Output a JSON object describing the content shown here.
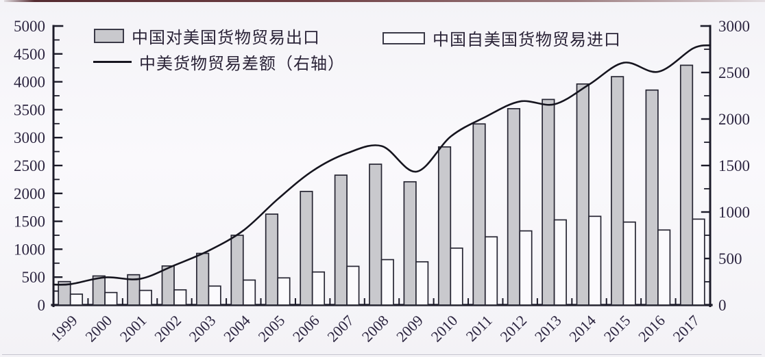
{
  "page": {
    "background": "#f8f7fa",
    "ink_color": "#1c1b29",
    "text_color": "#2c2540"
  },
  "legend": {
    "exports_label": "中国对美国货物贸易出口",
    "imports_label": "中国自美国货物贸易进口",
    "balance_label": "中美货物贸易差额（右轴）"
  },
  "chart_data": {
    "type": "bar+line",
    "title": "",
    "xlabel": "",
    "ylabel": "",
    "categories": [
      "1999",
      "2000",
      "2001",
      "2002",
      "2003",
      "2004",
      "2005",
      "2006",
      "2007",
      "2008",
      "2009",
      "2010",
      "2011",
      "2012",
      "2013",
      "2014",
      "2015",
      "2016",
      "2017"
    ],
    "series": [
      {
        "name": "中国对美国货物贸易出口",
        "type": "bar",
        "axis": "left",
        "fill": "#c9c9cd",
        "stroke": "#262532",
        "values": [
          420,
          521,
          543,
          700,
          925,
          1250,
          1629,
          2035,
          2327,
          2523,
          2208,
          2833,
          3245,
          3518,
          3684,
          3961,
          4092,
          3852,
          4297
        ]
      },
      {
        "name": "中国自美国货物贸易进口",
        "type": "bar",
        "axis": "left",
        "fill": "#fbfafd",
        "stroke": "#262532",
        "values": [
          195,
          224,
          262,
          272,
          339,
          447,
          487,
          592,
          694,
          814,
          774,
          1020,
          1222,
          1329,
          1526,
          1590,
          1487,
          1344,
          1539
        ]
      },
      {
        "name": "中美货物贸易差额（右轴）",
        "type": "line",
        "axis": "right",
        "color": "#16151f",
        "values": [
          225,
          297,
          281,
          427,
          586,
          803,
          1142,
          1443,
          1633,
          1709,
          1434,
          1813,
          2023,
          2189,
          2159,
          2371,
          2605,
          2508,
          2758
        ]
      }
    ],
    "left_axis": {
      "min": 0,
      "max": 5000,
      "major_step": 500,
      "minor_step": 250,
      "ticks": [
        "0",
        "500",
        "1000",
        "1500",
        "2000",
        "2500",
        "3000",
        "3500",
        "4000",
        "4500",
        "5000"
      ]
    },
    "right_axis": {
      "min": 0,
      "max": 3000,
      "major_step": 500,
      "minor_step": 250,
      "ticks": [
        "0",
        "500",
        "1000",
        "1500",
        "2000",
        "2500",
        "3000"
      ]
    },
    "grid": false,
    "legend_position": "top"
  }
}
